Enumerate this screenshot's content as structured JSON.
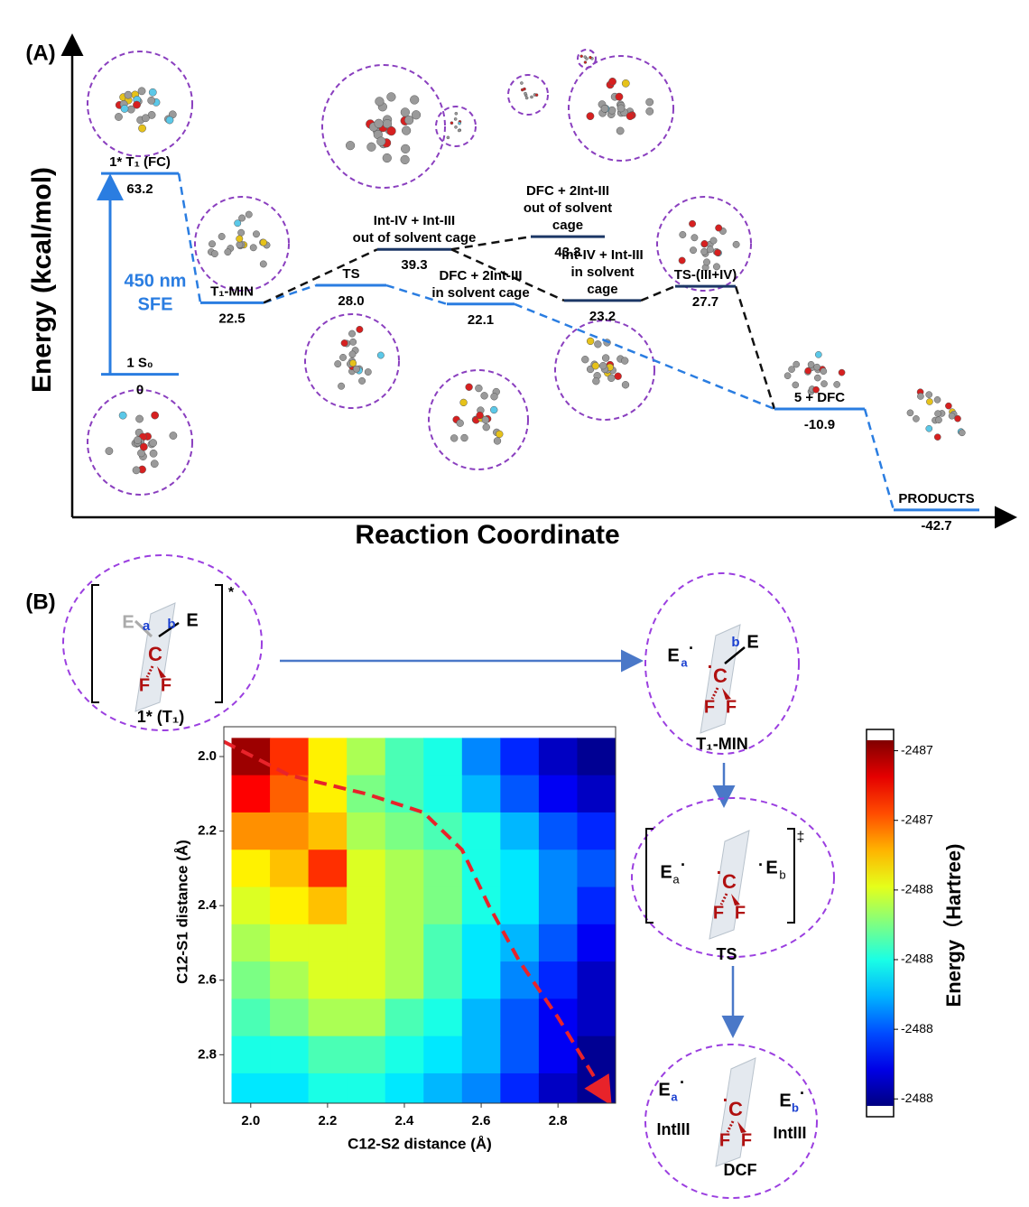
{
  "chart_data": [
    {
      "type": "energy-diagram",
      "panel_label": "(A)",
      "ylabel": "Energy (kcal/mol)",
      "xlabel": "Reaction Coordinate",
      "annotation": [
        "450 nm",
        "SFE"
      ],
      "ylim": [
        -45,
        105
      ],
      "levels": [
        {
          "name": [
            "1 S₀"
          ],
          "value": 0,
          "value_label": "0",
          "color": "#2a7de1"
        },
        {
          "name": [
            "1* T₁ (FC)"
          ],
          "value": 63.2,
          "value_label": "63.2",
          "color": "#2a7de1"
        },
        {
          "name": [
            "T₁-MIN"
          ],
          "value": 22.5,
          "value_label": "22.5",
          "color": "#2a7de1"
        },
        {
          "name": [
            "TS"
          ],
          "value": 28,
          "value_label": "28.0",
          "color": "#2a7de1"
        },
        {
          "name": [
            "Int-IV + Int-III",
            "out of solvent cage"
          ],
          "value": 39.3,
          "value_label": "39.3",
          "color": "#1c3766"
        },
        {
          "name": [
            "DFC + 2Int-III",
            "in solvent cage"
          ],
          "value": 22.1,
          "value_label": "22.1",
          "color": "#2a7de1"
        },
        {
          "name": [
            "DFC + 2Int-III",
            "out of solvent",
            "cage"
          ],
          "value": 43.3,
          "value_label": "43.3",
          "color": "#1c3766"
        },
        {
          "name": [
            "Int-IV + Int-III",
            "in solvent",
            "cage"
          ],
          "value": 23.2,
          "value_label": "23.2",
          "color": "#1c3766"
        },
        {
          "name": [
            "TS-(III+IV)"
          ],
          "value": 27.7,
          "value_label": "27.7",
          "color": "#1c3766"
        },
        {
          "name": [
            "5 + DFC"
          ],
          "value": -10.9,
          "value_label": "-10.9",
          "color": "#2a7de1"
        },
        {
          "name": [
            "PRODUCTS"
          ],
          "value": -42.7,
          "value_label": "-42.7",
          "color": "#2a7de1"
        }
      ]
    },
    {
      "type": "heatmap",
      "xlabel": "C12-S2 distance (Å)",
      "ylabel": "C12-S1 distance (Å)",
      "xlim": [
        1.93,
        2.95
      ],
      "ylim": [
        1.92,
        2.93
      ],
      "xticks": [
        {
          "value": 2,
          "label": "2.0"
        },
        2.2,
        2.4,
        2.6,
        2.8
      ],
      "yticks": [
        {
          "value": 2,
          "label": "2.0"
        },
        2.2,
        2.4,
        2.6,
        2.8
      ],
      "x": [
        2.0,
        2.1,
        2.2,
        2.3,
        2.4,
        2.5,
        2.6,
        2.7,
        2.8,
        2.9
      ],
      "y": [
        2.0,
        2.1,
        2.2,
        2.3,
        2.4,
        2.5,
        2.6,
        2.7,
        2.8,
        2.9
      ],
      "z": [
        [
          -2487.2,
          -2487.35,
          -2487.55,
          -2487.65,
          -2487.75,
          -2487.8,
          -2487.95,
          -2488.05,
          -2488.15,
          -2488.2
        ],
        [
          -2487.3,
          -2487.4,
          -2487.55,
          -2487.7,
          -2487.75,
          -2487.8,
          -2487.9,
          -2488.0,
          -2488.1,
          -2488.15
        ],
        [
          -2487.45,
          -2487.45,
          -2487.5,
          -2487.65,
          -2487.7,
          -2487.75,
          -2487.8,
          -2487.9,
          -2488.0,
          -2488.05
        ],
        [
          -2487.55,
          -2487.5,
          -2487.35,
          -2487.6,
          -2487.65,
          -2487.7,
          -2487.8,
          -2487.85,
          -2487.95,
          -2488.0
        ],
        [
          -2487.6,
          -2487.55,
          -2487.5,
          -2487.6,
          -2487.65,
          -2487.7,
          -2487.8,
          -2487.85,
          -2487.95,
          -2488.05
        ],
        [
          -2487.65,
          -2487.6,
          -2487.6,
          -2487.6,
          -2487.65,
          -2487.75,
          -2487.85,
          -2487.9,
          -2488.0,
          -2488.1
        ],
        [
          -2487.7,
          -2487.65,
          -2487.6,
          -2487.6,
          -2487.65,
          -2487.75,
          -2487.85,
          -2487.95,
          -2488.05,
          -2488.15
        ],
        [
          -2487.75,
          -2487.7,
          -2487.65,
          -2487.65,
          -2487.75,
          -2487.8,
          -2487.9,
          -2488.0,
          -2488.1,
          -2488.15
        ],
        [
          -2487.8,
          -2487.8,
          -2487.75,
          -2487.75,
          -2487.8,
          -2487.85,
          -2487.9,
          -2488.0,
          -2488.1,
          -2488.2
        ],
        [
          -2487.85,
          -2487.85,
          -2487.8,
          -2487.8,
          -2487.85,
          -2487.9,
          -2487.95,
          -2488.05,
          -2488.15,
          -2488.2
        ]
      ],
      "colorbar": {
        "title": "Energy（Hartree)",
        "lim": [
          -2488.22,
          -2487.17
        ],
        "ticks": [
          {
            "value": -2487.2,
            "label": "-2487"
          },
          {
            "value": -2487.4,
            "label": "-2487"
          },
          {
            "value": -2487.6,
            "label": "-2488"
          },
          {
            "value": -2487.8,
            "label": "-2488"
          },
          {
            "value": -2488.0,
            "label": "-2488"
          },
          {
            "value": -2488.2,
            "label": "-2488"
          }
        ]
      },
      "path": {
        "color": "#e8232a",
        "x": [
          1.93,
          2.1,
          2.3,
          2.45,
          2.55,
          2.62,
          2.7,
          2.8,
          2.93
        ],
        "y": [
          1.96,
          2.05,
          2.1,
          2.15,
          2.25,
          2.4,
          2.55,
          2.7,
          2.92
        ]
      }
    }
  ],
  "panel_b": {
    "label": "(B)",
    "states": [
      "1* (T₁)",
      "T₁-MIN",
      "TS",
      "DCF"
    ],
    "fragment": "IntIII",
    "glyphs": {
      "E": "E",
      "a": "a",
      "b": "b",
      "C": "C",
      "F": "F",
      "radical": "·",
      "star": "*",
      "dagger": "‡"
    }
  }
}
